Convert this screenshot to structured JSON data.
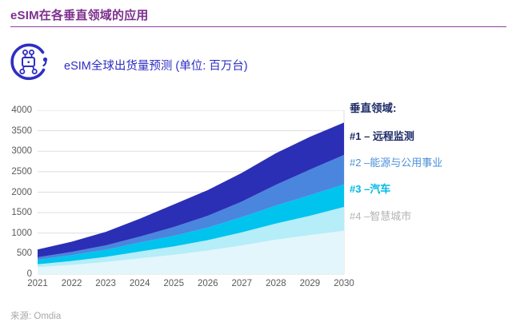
{
  "page": {
    "title": "eSIM在各垂直领域的应用",
    "source": "来源: Omdia"
  },
  "header": {
    "icon": "iot-network-icon",
    "subtitle": "eSIM全球出货量预测 (单位: 百万台)"
  },
  "legend": {
    "title": "垂直领域:",
    "items": [
      {
        "rank": "#1",
        "label": "#1 – 远程监测",
        "color": "#1c2b66"
      },
      {
        "rank": "#2",
        "label": "#2 –能源与公用事业",
        "color": "#4a90d9"
      },
      {
        "rank": "#3",
        "label": "#3 –汽车",
        "color": "#00b9e6"
      },
      {
        "rank": "#4",
        "label": "#4 –智慧城市",
        "color": "#b3b3b3"
      }
    ]
  },
  "chart_data": {
    "type": "area",
    "stacked": true,
    "title": "eSIM全球出货量预测 (单位: 百万台)",
    "unit": "百万台",
    "x": [
      2021,
      2022,
      2023,
      2024,
      2025,
      2026,
      2027,
      2028,
      2029,
      2030
    ],
    "series": [
      {
        "name": "#1 远程监测",
        "color": "#2b2fb5",
        "stack": "top",
        "values": [
          190,
          250,
          330,
          435,
          550,
          625,
          700,
          770,
          800,
          790
        ]
      },
      {
        "name": "#2 能源与公用事业",
        "color": "#4a86dd",
        "values": [
          60,
          80,
          105,
          145,
          215,
          290,
          380,
          505,
          625,
          720
        ]
      },
      {
        "name": "#3 汽车",
        "color": "#00c3ee",
        "values": [
          110,
          140,
          175,
          220,
          260,
          305,
          370,
          440,
          500,
          550
        ]
      },
      {
        "name": "#4 智慧城市",
        "color": "#b5edf8",
        "values": [
          70,
          95,
          125,
          165,
          205,
          255,
          320,
          395,
          470,
          580
        ]
      },
      {
        "name": "unlabeled",
        "color": "#e3f6fc",
        "stack": "bottom",
        "values": [
          170,
          225,
          295,
          385,
          470,
          575,
          700,
          840,
          955,
          1060
        ]
      }
    ],
    "totals": [
      600,
      790,
      1030,
      1350,
      1700,
      2050,
      2470,
      2950,
      3350,
      3700
    ],
    "ylim": [
      0,
      4000
    ],
    "yticks": [
      0,
      500,
      1000,
      1500,
      2000,
      2500,
      3000,
      3500,
      4000
    ],
    "grid": true,
    "gridline_color": "#dddddd",
    "axis_label_color": "#595959",
    "legend_position": "right"
  }
}
